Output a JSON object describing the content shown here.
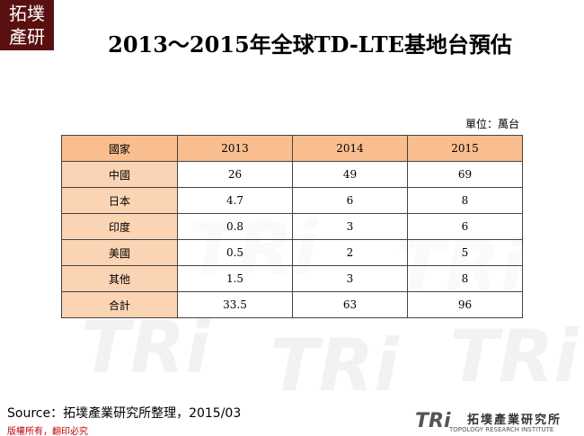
{
  "header": {
    "logo": [
      "拓墣",
      "產研"
    ],
    "title": "2013～2015年全球TD-LTE基地台預估"
  },
  "unit": "單位：萬台",
  "table": {
    "columns": [
      "國家",
      "2013",
      "2014",
      "2015"
    ],
    "rows": [
      [
        "中國",
        26,
        49,
        69
      ],
      [
        "日本",
        4.7,
        6,
        8
      ],
      [
        "印度",
        0.8,
        3,
        6
      ],
      [
        "美國",
        0.5,
        2,
        5
      ],
      [
        "其他",
        1.5,
        3,
        8
      ],
      [
        "合計",
        33.5,
        63,
        96
      ]
    ]
  },
  "source": "Source：拓墣產業研究所整理，2015/03",
  "footer": {
    "copyright": "版權所有，翻印必究",
    "brand": "TRi",
    "brand_name": "拓墣產業研究所",
    "brand_sub": "TOPOLOGY RESEARCH INSTITUTE"
  }
}
